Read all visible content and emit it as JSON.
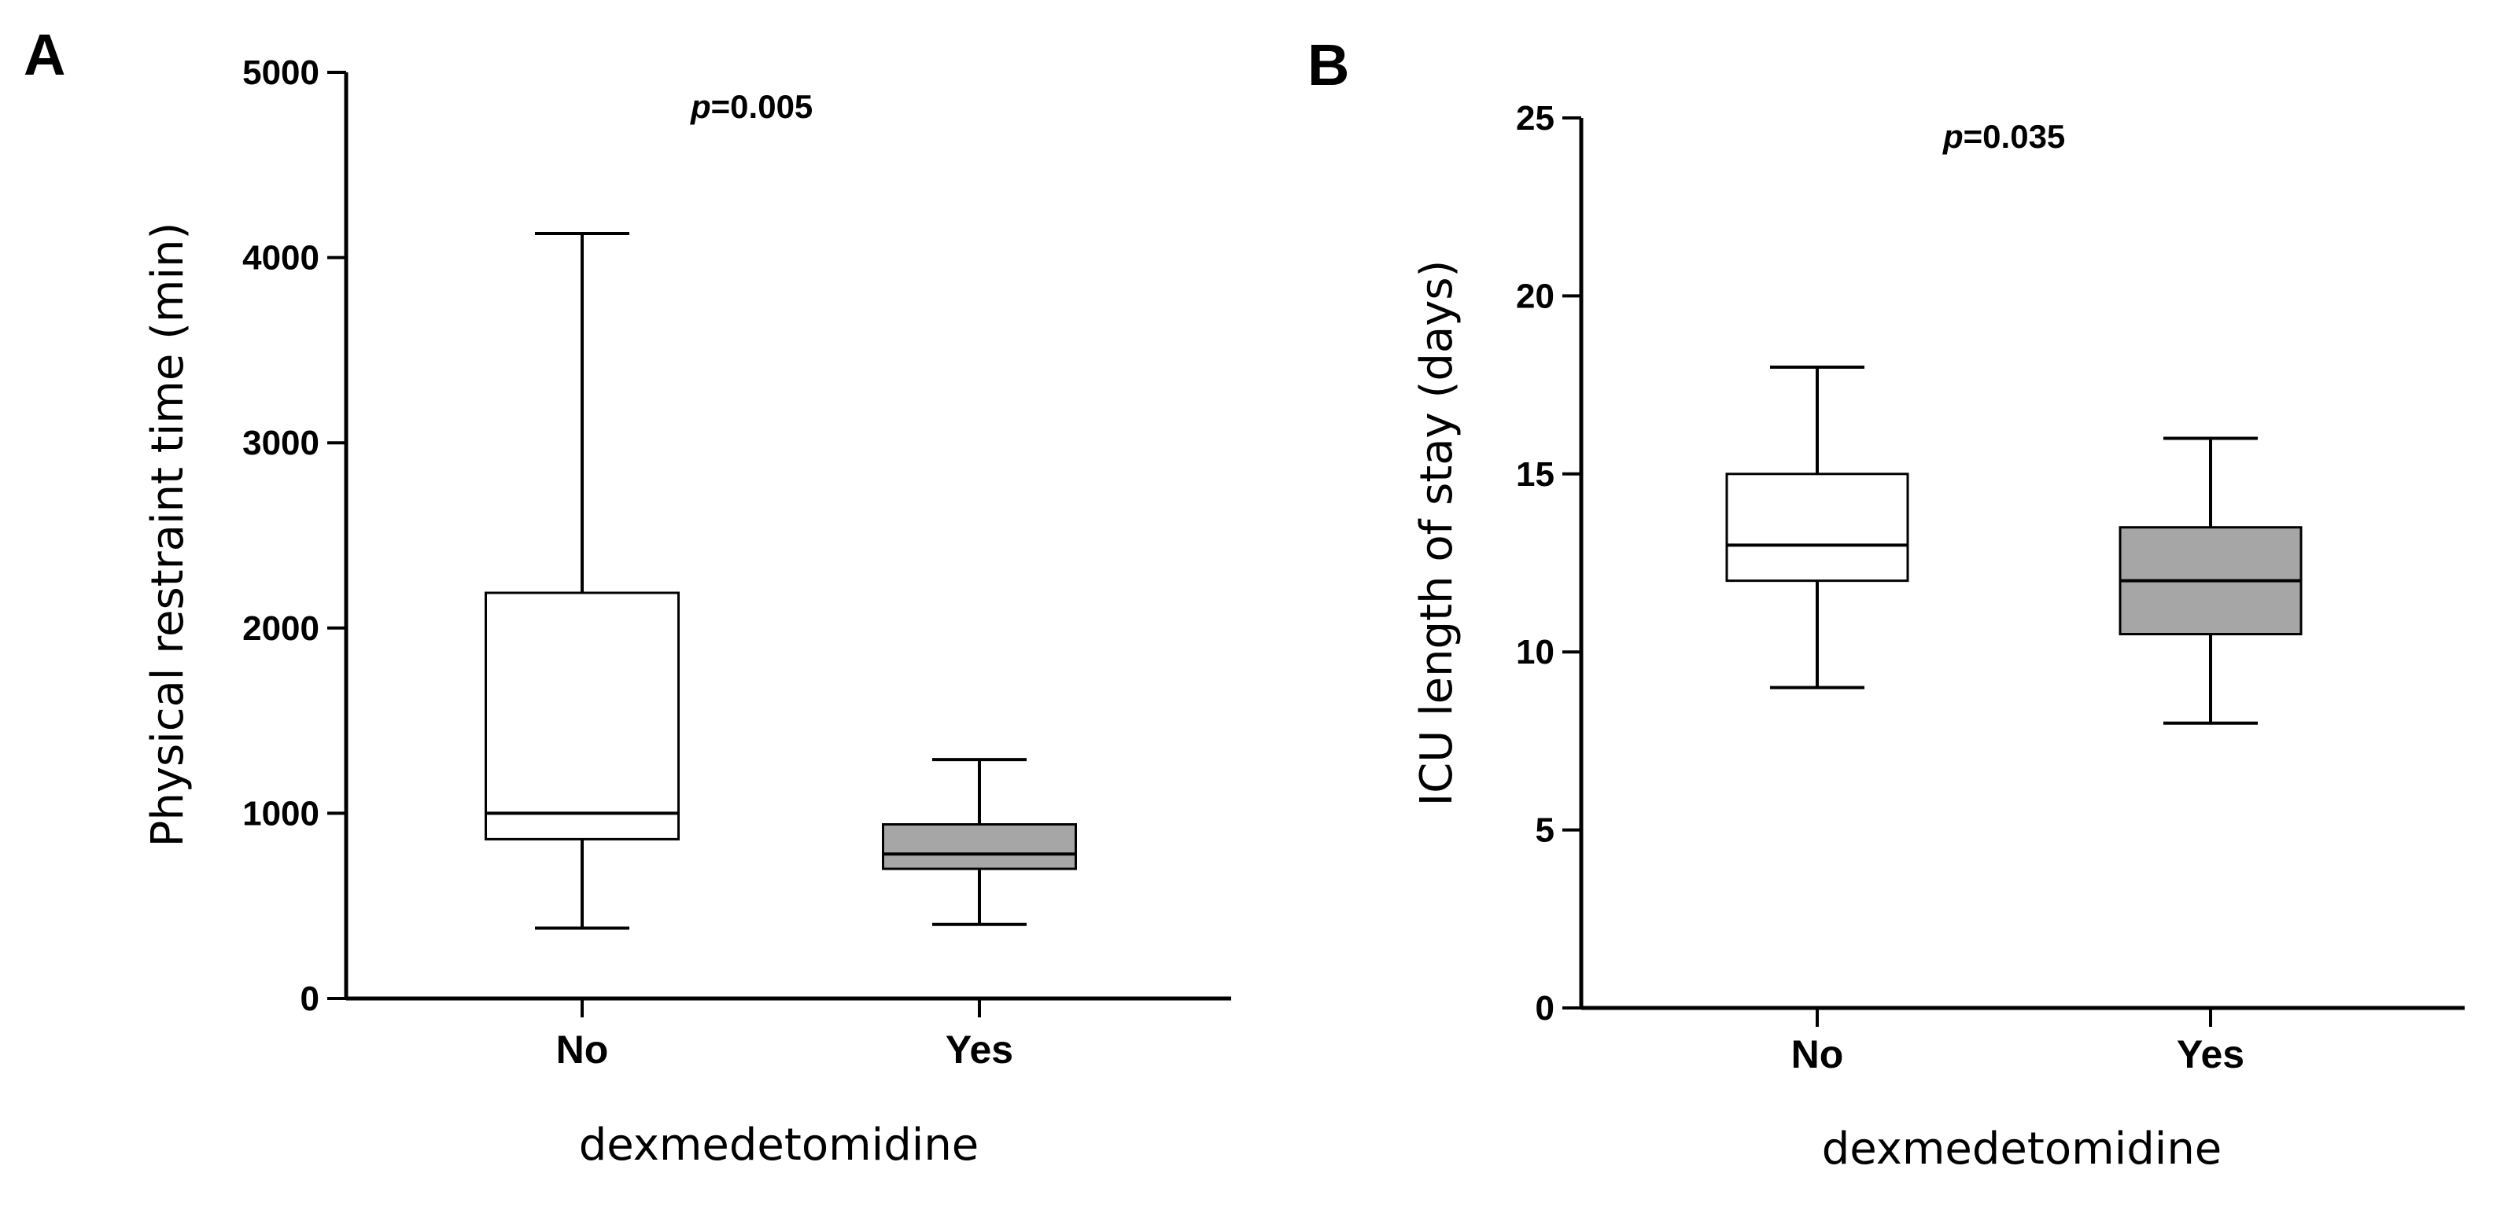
{
  "chart_data": [
    {
      "type": "box",
      "panel_label": "A",
      "title": "",
      "annotation": {
        "p_symbol": "p",
        "p_value": "=0.005"
      },
      "xlabel": "dexmedetomidine",
      "ylabel": "Physical restraint time (min)",
      "ylim": [
        0,
        5000
      ],
      "yticks": [
        0,
        1000,
        2000,
        3000,
        4000,
        5000
      ],
      "ytick_labels": [
        "0",
        "1000",
        "2000",
        "3000",
        "4000",
        "5000"
      ],
      "categories": [
        "No",
        "Yes"
      ],
      "boxes": [
        {
          "category": "No",
          "min": 380,
          "q1": 860,
          "median": 1000,
          "q3": 2190,
          "max": 4130,
          "fill": "#ffffff"
        },
        {
          "category": "Yes",
          "min": 400,
          "q1": 700,
          "median": 780,
          "q3": 940,
          "max": 1290,
          "fill": "#a6a6a6"
        }
      ]
    },
    {
      "type": "box",
      "panel_label": "B",
      "title": "",
      "annotation": {
        "p_symbol": "p",
        "p_value": "=0.035"
      },
      "xlabel": "dexmedetomidine",
      "ylabel": "ICU length of stay (days)",
      "ylim": [
        0,
        25
      ],
      "yticks": [
        0,
        5,
        10,
        15,
        20,
        25
      ],
      "ytick_labels": [
        "0",
        "5",
        "10",
        "15",
        "20",
        "25"
      ],
      "categories": [
        "No",
        "Yes"
      ],
      "boxes": [
        {
          "category": "No",
          "min": 9,
          "q1": 12,
          "median": 13,
          "q3": 15,
          "max": 18,
          "fill": "#ffffff"
        },
        {
          "category": "Yes",
          "min": 8,
          "q1": 10.5,
          "median": 12,
          "q3": 13.5,
          "max": 16,
          "fill": "#a6a6a6"
        }
      ]
    }
  ]
}
